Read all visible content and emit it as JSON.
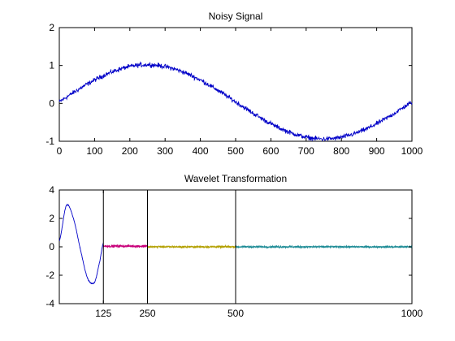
{
  "chart_data": [
    {
      "type": "line",
      "title": "Noisy Signal",
      "xlabel": "",
      "ylabel": "",
      "xlim": [
        0,
        1000
      ],
      "ylim": [
        -1,
        2
      ],
      "xticks": [
        0,
        100,
        200,
        300,
        400,
        500,
        600,
        700,
        800,
        900,
        1000
      ],
      "yticks": [
        -1,
        0,
        1,
        2
      ],
      "grid": false,
      "series": [
        {
          "color": "#0000c8",
          "signal_model": "sin(2*pi*x/1000) with additive noise",
          "x": [
            0,
            50,
            100,
            150,
            200,
            250,
            300,
            350,
            400,
            450,
            500,
            550,
            600,
            650,
            700,
            750,
            800,
            850,
            900,
            950,
            1000
          ],
          "y": [
            0.05,
            0.35,
            0.6,
            0.83,
            0.96,
            1.02,
            0.97,
            0.81,
            0.6,
            0.33,
            0.03,
            -0.29,
            -0.57,
            -0.79,
            -0.93,
            -0.98,
            -0.93,
            -0.78,
            -0.56,
            -0.29,
            0.02
          ]
        }
      ]
    },
    {
      "type": "line",
      "title": "Wavelet Transformation",
      "xlabel": "",
      "ylabel": "",
      "xlim": [
        0,
        1000
      ],
      "ylim": [
        -4,
        4
      ],
      "xticks": [
        125,
        250,
        500,
        1000
      ],
      "yticks": [
        -4,
        -2,
        0,
        2,
        4
      ],
      "grid": false,
      "dividers": [
        125,
        250,
        500
      ],
      "series": [
        {
          "color": "#0000c8",
          "x": [
            0,
            20,
            40,
            60,
            80,
            100,
            115,
            125
          ],
          "y": [
            0.4,
            2.9,
            2.0,
            -0.2,
            -2.2,
            -2.5,
            -1.0,
            0.3
          ]
        },
        {
          "color": "#c8007a",
          "x": [
            125,
            250
          ],
          "y": [
            0.05,
            0.05
          ]
        },
        {
          "color": "#b3a000",
          "x": [
            250,
            500
          ],
          "y": [
            0.0,
            0.0
          ]
        },
        {
          "color": "#1e8c96",
          "x": [
            500,
            1000
          ],
          "y": [
            0.0,
            0.0
          ]
        }
      ]
    }
  ]
}
